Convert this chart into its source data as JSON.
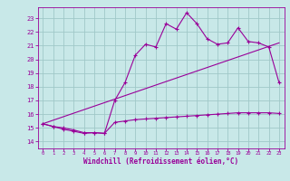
{
  "xlabel": "Windchill (Refroidissement éolien,°C)",
  "background_color": "#c8e8e8",
  "grid_color": "#a0c8c8",
  "line_color": "#990099",
  "x_ticks": [
    0,
    1,
    2,
    3,
    4,
    5,
    6,
    7,
    8,
    9,
    10,
    11,
    12,
    13,
    14,
    15,
    16,
    17,
    18,
    19,
    20,
    21,
    22,
    23
  ],
  "y_ticks": [
    14,
    15,
    16,
    17,
    18,
    19,
    20,
    21,
    22,
    23
  ],
  "ylim": [
    13.5,
    23.8
  ],
  "xlim": [
    -0.5,
    23.5
  ],
  "series1_x": [
    0,
    1,
    2,
    3,
    4,
    5,
    6,
    7,
    8,
    9,
    10,
    11,
    12,
    13,
    14,
    15,
    16,
    17,
    18,
    19,
    20,
    21,
    22,
    23
  ],
  "series1_y": [
    15.3,
    15.1,
    15.0,
    14.85,
    14.65,
    14.65,
    14.6,
    17.0,
    18.3,
    20.3,
    21.1,
    20.9,
    22.6,
    22.2,
    23.4,
    22.6,
    21.5,
    21.1,
    21.2,
    22.3,
    21.3,
    21.2,
    20.9,
    18.3
  ],
  "series2_x": [
    0,
    1,
    2,
    3,
    4,
    5,
    6,
    7,
    8,
    9,
    10,
    11,
    12,
    13,
    14,
    15,
    16,
    17,
    18,
    19,
    20,
    21,
    22,
    23
  ],
  "series2_y": [
    15.3,
    15.1,
    14.9,
    14.75,
    14.6,
    14.65,
    14.6,
    15.4,
    15.5,
    15.6,
    15.65,
    15.7,
    15.75,
    15.8,
    15.85,
    15.9,
    15.95,
    16.0,
    16.05,
    16.1,
    16.1,
    16.1,
    16.1,
    16.05
  ],
  "series3_x": [
    0,
    23
  ],
  "series3_y": [
    15.3,
    21.2
  ]
}
